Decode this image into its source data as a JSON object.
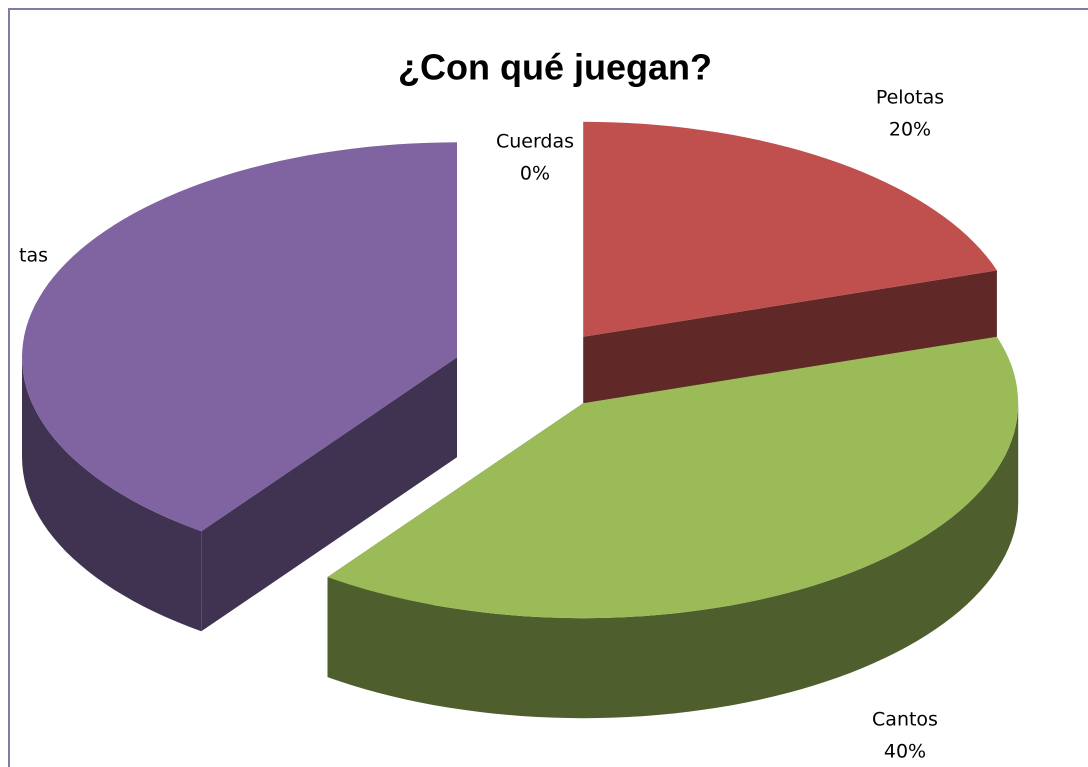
{
  "chart_data": {
    "type": "pie3d",
    "title": "¿Con qué juegan?",
    "categories": [
      "Cuerdas",
      "Pelotas",
      "Cantos",
      "tas"
    ],
    "values": [
      0,
      20,
      40,
      40
    ],
    "value_labels": [
      "0%",
      "20%",
      "40%",
      null
    ],
    "colors": [
      "#4f81bd",
      "#c0504d",
      "#9bbb59",
      "#8064a2"
    ]
  }
}
